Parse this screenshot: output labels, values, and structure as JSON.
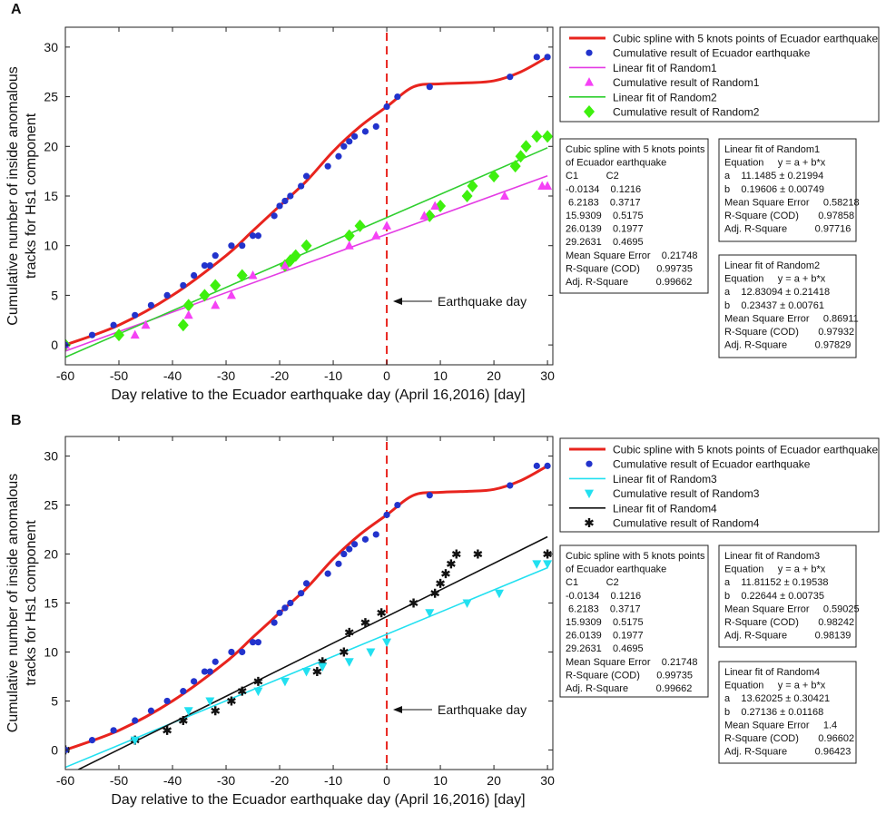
{
  "chart_data": [
    {
      "panel_label": "A",
      "type": "scatter",
      "xlabel": "Day relative to the Ecuador earthquake day (April 16,2016) [day]",
      "ylabel": [
        "Cumulative number of inside anomalous",
        "tracks for Hs1 component"
      ],
      "xlim": [
        -60,
        31
      ],
      "ylim": [
        -2,
        32
      ],
      "xticks": [
        -60,
        -50,
        -40,
        -30,
        -20,
        -10,
        0,
        10,
        20,
        30
      ],
      "yticks": [
        0,
        5,
        10,
        15,
        20,
        25,
        30
      ],
      "event_line": {
        "x": 0,
        "color": "#e8241e"
      },
      "annotation": "Earthquake day",
      "legend": [
        {
          "label": "Cubic spline with 5 knots points of Ecuador earthquake",
          "kind": "line",
          "color": "#e8241e"
        },
        {
          "label": "Cumulative result of Ecuador earthquake",
          "kind": "circle",
          "color": "#2233cc"
        },
        {
          "label": "Linear fit of Random1",
          "kind": "line",
          "color": "#e43ce4"
        },
        {
          "label": "Cumulative result of Random1",
          "kind": "triangle-up",
          "color": "#f542f5"
        },
        {
          "label": "Linear fit of Random2",
          "kind": "line",
          "color": "#2fcf2f"
        },
        {
          "label": "Cumulative result of Random2",
          "kind": "diamond",
          "color": "#3ef00e"
        }
      ],
      "spline": {
        "name": "Cubic spline with 5 knots points of Ecuador earthquake",
        "color": "#e8241e",
        "x": [
          -60,
          -50,
          -40,
          -30,
          -25,
          -20,
          -15,
          -10,
          -5,
          0,
          5,
          10,
          15,
          20,
          25,
          30
        ],
        "y": [
          0,
          2,
          5,
          9,
          11.5,
          14,
          16.5,
          19.5,
          22,
          24,
          26,
          26.3,
          26.4,
          26.6,
          27.5,
          29
        ]
      },
      "eq_points": {
        "name": "Cumulative result of Ecuador earthquake",
        "color": "#2233cc",
        "x": [
          -60,
          -55,
          -51,
          -47,
          -44,
          -41,
          -38,
          -36,
          -34,
          -33,
          -32,
          -29,
          -27,
          -25,
          -24,
          -21,
          -20,
          -19,
          -18,
          -16,
          -15,
          -11,
          -9,
          -8,
          -7,
          -6,
          -4,
          -2,
          0,
          2,
          8,
          23,
          28,
          30
        ],
        "y": [
          0,
          1,
          2,
          3,
          4,
          5,
          6,
          7,
          8,
          8,
          9,
          10,
          10,
          11,
          11,
          13,
          14,
          14.5,
          15,
          16,
          17,
          18,
          19,
          20,
          20.5,
          21,
          21.5,
          22,
          24,
          25,
          26,
          27,
          29,
          29
        ]
      },
      "fit1": {
        "name": "Linear fit of Random1",
        "color": "#e43ce4",
        "a": 11.1485,
        "b": 0.19606
      },
      "r1": {
        "name": "Cumulative result of Random1",
        "color": "#f542f5",
        "x": [
          -60,
          -47,
          -45,
          -37,
          -32,
          -29,
          -25,
          -19,
          -7,
          -2,
          0,
          7,
          9,
          22,
          29,
          30
        ],
        "y": [
          0,
          1,
          2,
          3,
          4,
          5,
          7,
          8,
          10,
          11,
          12,
          13,
          14,
          15,
          16,
          16
        ]
      },
      "fit2": {
        "name": "Linear fit of Random2",
        "color": "#2fcf2f",
        "a": 12.83094,
        "b": 0.23437
      },
      "r2": {
        "name": "Cumulative result of Random2",
        "color": "#3ef00e",
        "x": [
          -60,
          -50,
          -38,
          -37,
          -34,
          -32,
          -27,
          -19,
          -18,
          -17,
          -15,
          -7,
          -5,
          8,
          10,
          15,
          16,
          20,
          24,
          25,
          26,
          28,
          30
        ],
        "y": [
          0,
          1,
          2,
          4,
          5,
          6,
          7,
          8,
          8.5,
          9,
          10,
          11,
          12,
          13,
          14,
          15,
          16,
          17,
          18,
          19,
          20,
          21,
          21
        ]
      },
      "spline_stats": [
        "Cubic spline with 5 knots points",
        "of Ecuador earthquake",
        "C1          C2",
        "-0.0134    0.1216",
        " 6.2183    0.3717",
        "15.9309    0.5175",
        "26.0139    0.1977",
        "29.2631    0.4695",
        "Mean Square Error    0.21748",
        "R-Square (COD)      0.99735",
        "Adj. R-Square          0.99662"
      ],
      "fit1_stats": [
        "Linear fit of Random1",
        "Equation     y = a + b*x",
        "a    11.1485 ± 0.21994",
        "b    0.19606 ± 0.00749",
        "Mean Square Error     0.58218",
        "R-Square (COD)       0.97858",
        "Adj. R-Square          0.97716"
      ],
      "fit2_stats": [
        "Linear fit of Random2",
        "Equation     y = a + b*x",
        "a    12.83094 ± 0.21418",
        "b    0.23437 ± 0.00761",
        "Mean Square Error     0.86911",
        "R-Square (COD)       0.97932",
        "Adj. R-Square          0.97829"
      ]
    },
    {
      "panel_label": "B",
      "type": "scatter",
      "xlabel": "Day relative to the Ecuador earthquake day (April 16,2016) [day]",
      "ylabel": [
        "Cumulative number of inside anomalous",
        "tracks for Hs1 component"
      ],
      "xlim": [
        -60,
        31
      ],
      "ylim": [
        -2,
        32
      ],
      "xticks": [
        -60,
        -50,
        -40,
        -30,
        -20,
        -10,
        0,
        10,
        20,
        30
      ],
      "yticks": [
        0,
        5,
        10,
        15,
        20,
        25,
        30
      ],
      "event_line": {
        "x": 0,
        "color": "#e8241e"
      },
      "annotation": "Earthquake day",
      "legend": [
        {
          "label": "Cubic spline with 5 knots points of Ecuador earthquake",
          "kind": "line",
          "color": "#e8241e"
        },
        {
          "label": "Cumulative result of Ecuador earthquake",
          "kind": "circle",
          "color": "#2233cc"
        },
        {
          "label": "Linear fit of Random3",
          "kind": "line",
          "color": "#22e0f0"
        },
        {
          "label": "Cumulative result of Random3",
          "kind": "triangle-down",
          "color": "#22e0f0"
        },
        {
          "label": "Linear fit of Random4",
          "kind": "line",
          "color": "#111111"
        },
        {
          "label": "Cumulative result of Random4",
          "kind": "star",
          "color": "#111111"
        }
      ],
      "spline": {
        "name": "Cubic spline with 5 knots points of Ecuador earthquake",
        "color": "#e8241e",
        "x": [
          -60,
          -50,
          -40,
          -30,
          -25,
          -20,
          -15,
          -10,
          -5,
          0,
          5,
          10,
          15,
          20,
          25,
          30
        ],
        "y": [
          0,
          2,
          5,
          9,
          11.5,
          14,
          16.5,
          19.5,
          22,
          24,
          26,
          26.3,
          26.4,
          26.6,
          27.5,
          29
        ]
      },
      "eq_points": {
        "name": "Cumulative result of Ecuador earthquake",
        "color": "#2233cc",
        "x": [
          -60,
          -55,
          -51,
          -47,
          -44,
          -41,
          -38,
          -36,
          -34,
          -33,
          -32,
          -29,
          -27,
          -25,
          -24,
          -21,
          -20,
          -19,
          -18,
          -16,
          -15,
          -11,
          -9,
          -8,
          -7,
          -6,
          -4,
          -2,
          0,
          2,
          8,
          23,
          28,
          30
        ],
        "y": [
          0,
          1,
          2,
          3,
          4,
          5,
          6,
          7,
          8,
          8,
          9,
          10,
          10,
          11,
          11,
          13,
          14,
          14.5,
          15,
          16,
          17,
          18,
          19,
          20,
          20.5,
          21,
          21.5,
          22,
          24,
          25,
          26,
          27,
          29,
          29
        ]
      },
      "fit1": {
        "name": "Linear fit of Random3",
        "color": "#22e0f0",
        "a": 11.81152,
        "b": 0.22644
      },
      "r1": {
        "name": "Cumulative result of Random3",
        "color": "#22e0f0",
        "x": [
          -47,
          -37,
          -33,
          -24,
          -19,
          -15,
          -12,
          -7,
          -3,
          0,
          8,
          15,
          21,
          28,
          30
        ],
        "y": [
          1,
          4,
          5,
          6,
          7,
          8,
          8.5,
          9,
          10,
          11,
          14,
          15,
          16,
          19,
          19
        ]
      },
      "fit2": {
        "name": "Linear fit of Random4",
        "color": "#111111",
        "a": 13.62025,
        "b": 0.27136
      },
      "r2": {
        "name": "Cumulative result of Random4",
        "color": "#111111",
        "x": [
          -60,
          -47,
          -41,
          -38,
          -32,
          -29,
          -27,
          -24,
          -13,
          -12,
          -8,
          -7,
          -4,
          -1,
          5,
          9,
          10,
          11,
          12,
          13,
          17,
          30
        ],
        "y": [
          0,
          1,
          2,
          3,
          4,
          5,
          6,
          7,
          8,
          9,
          10,
          12,
          13,
          14,
          15,
          16,
          17,
          18,
          19,
          20,
          20,
          20
        ]
      },
      "spline_stats": [
        "Cubic spline with 5 knots points",
        "of Ecuador earthquake",
        "C1          C2",
        "-0.0134    0.1216",
        " 6.2183    0.3717",
        "15.9309    0.5175",
        "26.0139    0.1977",
        "29.2631    0.4695",
        "Mean Square Error    0.21748",
        "R-Square (COD)      0.99735",
        "Adj. R-Square          0.99662"
      ],
      "fit1_stats": [
        "Linear fit of Random3",
        "Equation     y = a + b*x",
        "a    11.81152 ± 0.19538",
        "b    0.22644 ± 0.00735",
        "Mean Square Error     0.59025",
        "R-Square (COD)       0.98242",
        "Adj. R-Square          0.98139"
      ],
      "fit2_stats": [
        "Linear fit of Random4",
        "Equation     y = a + b*x",
        "a    13.62025 ± 0.30421",
        "b    0.27136 ± 0.01168",
        "Mean Square Error     1.4",
        "R-Square (COD)       0.96602",
        "Adj. R-Square          0.96423"
      ]
    }
  ]
}
